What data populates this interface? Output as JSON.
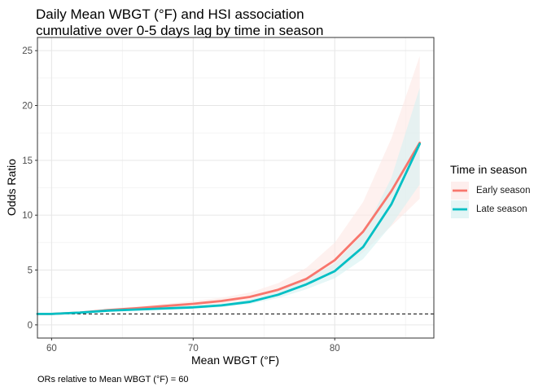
{
  "title_line1": "Daily Mean WBGT (°F) and HSI association",
  "title_line2": "cumulative over 0-5 days lag by time in season",
  "caption": "ORs relative to Mean WBGT (°F) = 60",
  "legend": {
    "title": "Time in season",
    "items": [
      {
        "label": "Early season",
        "color": "#F8766D"
      },
      {
        "label": "Late season",
        "color": "#00BFC4"
      }
    ]
  },
  "chart_data": {
    "type": "line",
    "title": "Daily Mean WBGT (°F) and HSI association cumulative over 0-5 days lag by time in season",
    "xlabel": "Mean WBGT (°F)",
    "ylabel": "Odds Ratio",
    "xlim": [
      59,
      87
    ],
    "ylim": [
      -1.2,
      26.2
    ],
    "x_ticks": [
      60,
      70,
      80
    ],
    "y_ticks": [
      0,
      5,
      10,
      15,
      20,
      25
    ],
    "grid": true,
    "reference_line": {
      "y": 1,
      "style": "dashed"
    },
    "legend_position": "right",
    "series": [
      {
        "name": "Early season",
        "color": "#F8766D",
        "x": [
          59,
          60,
          62,
          64,
          66,
          68,
          70,
          72,
          74,
          76,
          78,
          80,
          82,
          84,
          86
        ],
        "y": [
          1.0,
          1.0,
          1.12,
          1.35,
          1.52,
          1.72,
          1.92,
          2.18,
          2.55,
          3.2,
          4.2,
          5.9,
          8.5,
          12.2,
          16.6
        ],
        "lower": [
          1.0,
          1.0,
          1.08,
          1.25,
          1.38,
          1.55,
          1.72,
          1.95,
          2.25,
          2.75,
          3.55,
          4.8,
          6.6,
          9.0,
          11.5
        ],
        "upper": [
          1.0,
          1.0,
          1.18,
          1.45,
          1.68,
          1.92,
          2.18,
          2.48,
          2.95,
          3.8,
          5.2,
          7.5,
          11.2,
          17.0,
          24.5
        ]
      },
      {
        "name": "Late season",
        "color": "#00BFC4",
        "x": [
          59,
          60,
          62,
          64,
          66,
          68,
          70,
          72,
          74,
          76,
          78,
          80,
          82,
          84,
          86
        ],
        "y": [
          1.0,
          1.0,
          1.12,
          1.3,
          1.4,
          1.5,
          1.6,
          1.78,
          2.1,
          2.75,
          3.7,
          4.9,
          7.1,
          11.0,
          16.5
        ],
        "lower": [
          1.0,
          1.0,
          1.08,
          1.22,
          1.3,
          1.38,
          1.46,
          1.62,
          1.9,
          2.45,
          3.25,
          4.25,
          6.0,
          9.1,
          12.8
        ],
        "upper": [
          1.0,
          1.0,
          1.16,
          1.38,
          1.5,
          1.62,
          1.75,
          1.95,
          2.32,
          3.05,
          4.15,
          5.6,
          8.3,
          13.4,
          21.6
        ]
      }
    ]
  }
}
